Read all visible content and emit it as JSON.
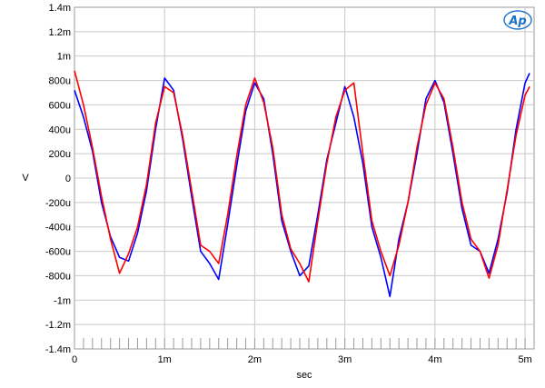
{
  "chart_data": {
    "type": "line",
    "title": "",
    "xlabel": "sec",
    "ylabel": "V",
    "xlim": [
      0,
      0.0051
    ],
    "ylim": [
      -0.0014,
      0.0014
    ],
    "x_ticks": [
      0,
      0.001,
      0.002,
      0.003,
      0.004,
      0.005
    ],
    "x_tick_labels": [
      "0",
      "1m",
      "2m",
      "3m",
      "4m",
      "5m"
    ],
    "y_ticks": [
      0.0014,
      0.0012,
      0.001,
      0.0008,
      0.0006,
      0.0004,
      0.0002,
      0,
      -0.0002,
      -0.0004,
      -0.0006,
      -0.0008,
      -0.001,
      -0.0012,
      -0.0014
    ],
    "y_tick_labels": [
      "1.4m",
      "1.2m",
      "1m",
      "800u",
      "600u",
      "400u",
      "200u",
      "0",
      "-200u",
      "-400u",
      "-600u",
      "-800u",
      "-1m",
      "-1.2m",
      "-1.4m"
    ],
    "grid": true,
    "series": [
      {
        "color": "#0000ff",
        "x": [
          0,
          0.0001,
          0.0002,
          0.0003,
          0.0004,
          0.0005,
          0.0006,
          0.0007,
          0.0008,
          0.0009,
          0.001,
          0.0011,
          0.0012,
          0.0013,
          0.0014,
          0.0015,
          0.0016,
          0.0017,
          0.0018,
          0.0019,
          0.002,
          0.0021,
          0.0022,
          0.0023,
          0.0024,
          0.0025,
          0.0026,
          0.0027,
          0.0028,
          0.0029,
          0.003,
          0.0031,
          0.0032,
          0.0033,
          0.0034,
          0.0035,
          0.0036,
          0.0037,
          0.0038,
          0.0039,
          0.004,
          0.0041,
          0.0042,
          0.0043,
          0.0044,
          0.0045,
          0.0046,
          0.0047,
          0.0048,
          0.0049,
          0.005,
          0.00505
        ],
        "y": [
          0.00072,
          0.0005,
          0.00022,
          -0.0002,
          -0.00048,
          -0.00065,
          -0.00068,
          -0.00045,
          -0.0001,
          0.0004,
          0.00082,
          0.00072,
          0.00032,
          -0.00015,
          -0.0006,
          -0.0007,
          -0.00083,
          -0.00038,
          0.0001,
          0.00055,
          0.00078,
          0.00065,
          0.0002,
          -0.00035,
          -0.0006,
          -0.0008,
          -0.00072,
          -0.0003,
          0.00015,
          0.00045,
          0.00075,
          0.0005,
          0.00012,
          -0.0004,
          -0.00065,
          -0.00097,
          -0.0005,
          -0.0002,
          0.0002,
          0.00065,
          0.0008,
          0.00062,
          0.0002,
          -0.00025,
          -0.00055,
          -0.0006,
          -0.00078,
          -0.0005,
          -0.00012,
          0.0004,
          0.00078,
          0.00086
        ]
      },
      {
        "color": "#ff0000",
        "x": [
          0,
          0.0001,
          0.0002,
          0.0003,
          0.0004,
          0.0005,
          0.0006,
          0.0007,
          0.0008,
          0.0009,
          0.001,
          0.0011,
          0.0012,
          0.0013,
          0.0014,
          0.0015,
          0.0016,
          0.0017,
          0.0018,
          0.0019,
          0.002,
          0.0021,
          0.0022,
          0.0023,
          0.0024,
          0.0025,
          0.0026,
          0.0027,
          0.0028,
          0.0029,
          0.003,
          0.0031,
          0.0032,
          0.0033,
          0.0034,
          0.0035,
          0.0036,
          0.0037,
          0.0038,
          0.0039,
          0.004,
          0.0041,
          0.0042,
          0.0043,
          0.0044,
          0.0045,
          0.0046,
          0.0047,
          0.0048,
          0.0049,
          0.005,
          0.00505
        ],
        "y": [
          0.00088,
          0.0006,
          0.00025,
          -0.00015,
          -0.0005,
          -0.00078,
          -0.00062,
          -0.0004,
          -5e-05,
          0.00045,
          0.00075,
          0.0007,
          0.00035,
          -0.0001,
          -0.00055,
          -0.0006,
          -0.0007,
          -0.0003,
          0.00018,
          0.0006,
          0.00082,
          0.00062,
          0.00025,
          -0.0003,
          -0.00058,
          -0.0007,
          -0.00085,
          -0.00035,
          0.00012,
          0.0005,
          0.00072,
          0.00078,
          0.0002,
          -0.00035,
          -0.0006,
          -0.0008,
          -0.00055,
          -0.0002,
          0.00025,
          0.0006,
          0.00078,
          0.00065,
          0.00025,
          -0.0002,
          -0.0005,
          -0.0006,
          -0.00082,
          -0.00055,
          -0.0001,
          0.00035,
          0.00068,
          0.00075
        ]
      }
    ]
  },
  "logo": {
    "text": "Ap"
  }
}
